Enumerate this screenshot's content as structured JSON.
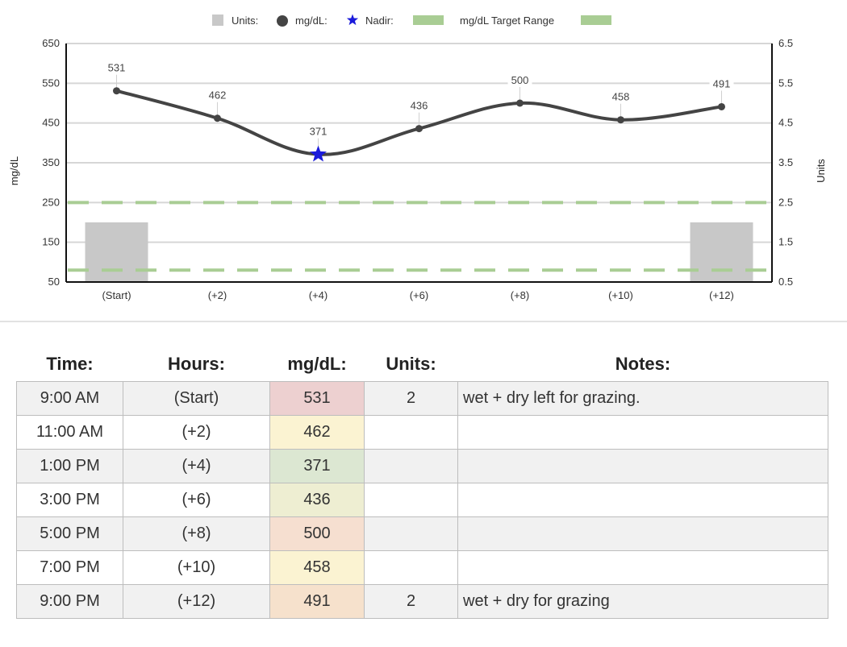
{
  "colors": {
    "line": "#444444",
    "units_bar": "#c8c8c8",
    "target": "#a9cd94",
    "nadir": "#1a1adb",
    "grid": "#d6d6d6"
  },
  "chart_data": {
    "type": "line",
    "legend": [
      {
        "label": "Units:",
        "marker": "square",
        "color": "#c8c8c8"
      },
      {
        "label": "mg/dL:",
        "marker": "circle",
        "color": "#444444"
      },
      {
        "label": "Nadir:",
        "marker": "star",
        "color": "#1a1adb"
      },
      {
        "label": "mg/dL Target Range",
        "marker": "dash",
        "color": "#a9cd94"
      }
    ],
    "legend_position": "top",
    "categories": [
      "(Start)",
      "(+2)",
      "(+4)",
      "(+6)",
      "(+8)",
      "(+10)",
      "(+12)"
    ],
    "series": [
      {
        "name": "mg/dL:",
        "values": [
          531,
          462,
          371,
          436,
          500,
          458,
          491
        ],
        "labels": [
          "531",
          "462",
          "371",
          "436",
          "500",
          "458",
          "491"
        ]
      },
      {
        "name": "Units:",
        "type": "bar",
        "axis": "right",
        "values": [
          2,
          0,
          0,
          0,
          0,
          0,
          2
        ]
      }
    ],
    "nadir_index": 2,
    "target_range": [
      80,
      250
    ],
    "ylabel": "mg/dL",
    "y2label": "Units",
    "ylim": [
      50,
      650
    ],
    "y2lim": [
      0.5,
      6.5
    ],
    "yticks": [
      "650",
      "550",
      "450",
      "350",
      "250",
      "150",
      "50"
    ],
    "y2ticks": [
      "6.5",
      "5.5",
      "4.5",
      "3.5",
      "2.5",
      "1.5",
      "0.5"
    ],
    "grid": true
  },
  "table": {
    "headers": [
      "Time:",
      "Hours:",
      "mg/dL:",
      "Units:",
      "Notes:"
    ],
    "rows": [
      {
        "time": "9:00 AM",
        "hours": "(Start)",
        "mgdl": "531",
        "units": "2",
        "notes": "wet + dry left for grazing.",
        "color": "#edd0d0"
      },
      {
        "time": "11:00 AM",
        "hours": "(+2)",
        "mgdl": "462",
        "units": "",
        "notes": "",
        "color": "#fbf3d2"
      },
      {
        "time": "1:00 PM",
        "hours": "(+4)",
        "mgdl": "371",
        "units": "",
        "notes": "",
        "color": "#dce7d2"
      },
      {
        "time": "3:00 PM",
        "hours": "(+6)",
        "mgdl": "436",
        "units": "",
        "notes": "",
        "color": "#eeeed2"
      },
      {
        "time": "5:00 PM",
        "hours": "(+8)",
        "mgdl": "500",
        "units": "",
        "notes": "",
        "color": "#f6dfd0"
      },
      {
        "time": "7:00 PM",
        "hours": "(+10)",
        "mgdl": "458",
        "units": "",
        "notes": "",
        "color": "#fbf3d2"
      },
      {
        "time": "9:00 PM",
        "hours": "(+12)",
        "mgdl": "491",
        "units": "2",
        "notes": "wet + dry for grazing",
        "color": "#f6e1cc"
      }
    ]
  }
}
